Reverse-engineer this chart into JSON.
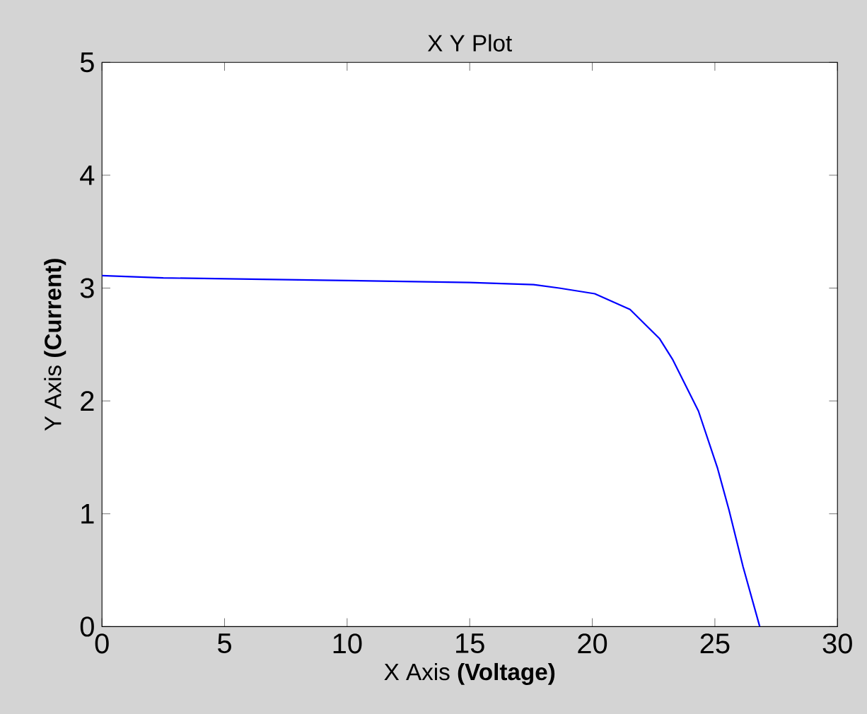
{
  "chart_data": {
    "type": "line",
    "title": "X Y Plot",
    "xlabel": "X Axis **(Voltage)**",
    "ylabel": "Y Axis **(Current)**",
    "xlim": [
      0,
      30
    ],
    "ylim": [
      0,
      5
    ],
    "xticks": [
      0,
      5,
      10,
      15,
      20,
      25,
      30
    ],
    "yticks": [
      0,
      1,
      2,
      3,
      4,
      5
    ],
    "marker": "none",
    "line_style": "solid",
    "series": [
      {
        "color": "#0000ff",
        "x": [
          0,
          2.5,
          9,
          15,
          17.6,
          18.65,
          20.1,
          21.54,
          22.75,
          23.27,
          24.33,
          25.1,
          25.58,
          26.15,
          26.83
        ],
        "values": [
          3.11,
          3.09,
          3.07,
          3.05,
          3.03,
          3.0,
          2.95,
          2.81,
          2.55,
          2.37,
          1.91,
          1.41,
          1.03,
          0.53,
          0
        ]
      }
    ]
  }
}
